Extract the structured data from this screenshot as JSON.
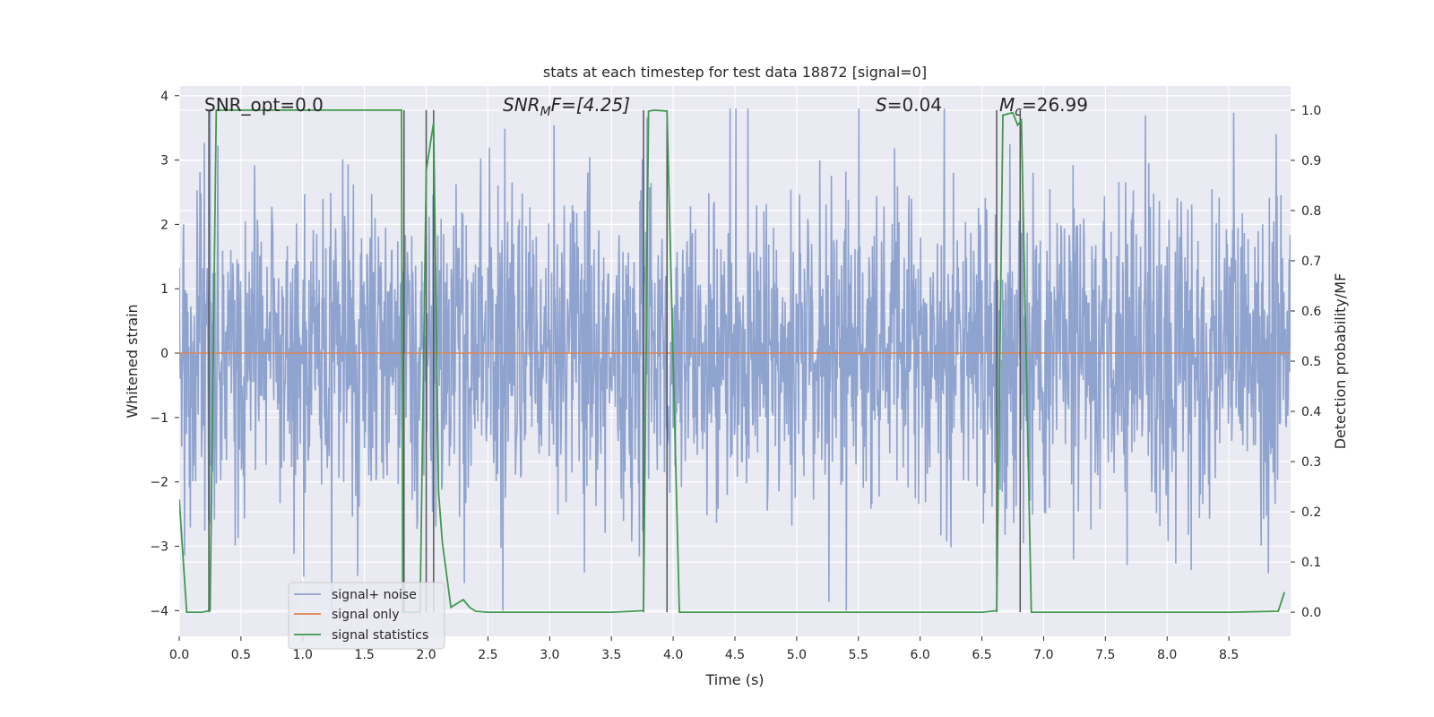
{
  "chart_data": {
    "type": "line",
    "title": "stats at each timestep for test data 18872 [signal=0]",
    "xlabel": "Time (s)",
    "ylabel_left": "Whitened strain",
    "ylabel_right": "Detection probability/MF",
    "xlim": [
      0.0,
      9.0
    ],
    "ylim_left": [
      -4.4,
      4.15
    ],
    "ylim_right": [
      -0.048,
      1.048
    ],
    "x_ticks": [
      "0.0",
      "0.5",
      "1.0",
      "1.5",
      "2.0",
      "2.5",
      "3.0",
      "3.5",
      "4.0",
      "4.5",
      "5.0",
      "5.5",
      "6.0",
      "6.5",
      "7.0",
      "7.5",
      "8.0",
      "8.5"
    ],
    "y_ticks_left": [
      "4",
      "3",
      "2",
      "1",
      "0",
      "−1",
      "−2",
      "−3",
      "−4"
    ],
    "y_ticks_right": [
      "1.0",
      "0.9",
      "0.8",
      "0.7",
      "0.6",
      "0.5",
      "0.4",
      "0.3",
      "0.2",
      "0.1",
      "0.0"
    ],
    "annotations": {
      "snr_opt": "SNR_opt=0.0",
      "snr_mf_main": "SNR",
      "snr_mf_sub": "M",
      "snr_mf_rest": "F=[4.25]",
      "s_italic": "S",
      "s_rest": "=0.04",
      "mc_main": "M",
      "mc_sub": "c",
      "mc_rest": "=26.99"
    },
    "legend": {
      "position": "lower-left",
      "entries": [
        "signal+ noise",
        "signal only",
        "signal statistics"
      ]
    },
    "series": [
      {
        "name": "signal+ noise",
        "axis": "left",
        "color": "#8fa3cf",
        "description": "whitened noisy strain, roughly gaussian with |values| up to ~3.8",
        "sample_rate_hz": 256,
        "typical_range": [
          -4.0,
          3.8
        ]
      },
      {
        "name": "signal only",
        "axis": "left",
        "color": "#dd8452",
        "x": [
          0.0,
          9.0
        ],
        "y": [
          0.0,
          0.0
        ]
      },
      {
        "name": "signal statistics",
        "axis": "right",
        "color": "#3f9a4d",
        "x": [
          0.0,
          0.06,
          0.1,
          0.18,
          0.25,
          0.3,
          0.32,
          0.5,
          1.0,
          1.5,
          1.8,
          1.81,
          1.92,
          1.95,
          2.0,
          2.06,
          2.1,
          2.13,
          2.2,
          2.3,
          2.35,
          2.4,
          2.5,
          2.8,
          3.0,
          3.5,
          3.76,
          3.8,
          3.85,
          3.95,
          4.05,
          4.1,
          4.5,
          5.0,
          5.5,
          6.0,
          6.5,
          6.62,
          6.67,
          6.75,
          6.79,
          6.82,
          6.9,
          7.0,
          7.5,
          8.0,
          8.5,
          8.9,
          8.95
        ],
        "y": [
          0.225,
          0.0,
          0.0,
          0.0,
          0.003,
          1.0,
          1.0,
          1.0,
          1.0,
          1.0,
          1.0,
          0.0,
          0.0,
          0.0,
          0.88,
          0.975,
          0.24,
          0.14,
          0.01,
          0.025,
          0.01,
          0.002,
          0.0,
          0.0,
          0.0,
          0.0,
          0.003,
          0.998,
          1.0,
          0.998,
          0.0,
          0.0,
          0.0,
          0.0,
          0.0,
          0.0,
          0.0,
          0.003,
          0.99,
          0.995,
          0.97,
          0.98,
          0.0,
          0.0,
          0.0,
          0.0,
          0.0,
          0.002,
          0.04
        ]
      }
    ],
    "vertical_lines_x": [
      0.24,
      1.82,
      2.0,
      2.06,
      3.76,
      3.95,
      6.62,
      6.81
    ]
  }
}
